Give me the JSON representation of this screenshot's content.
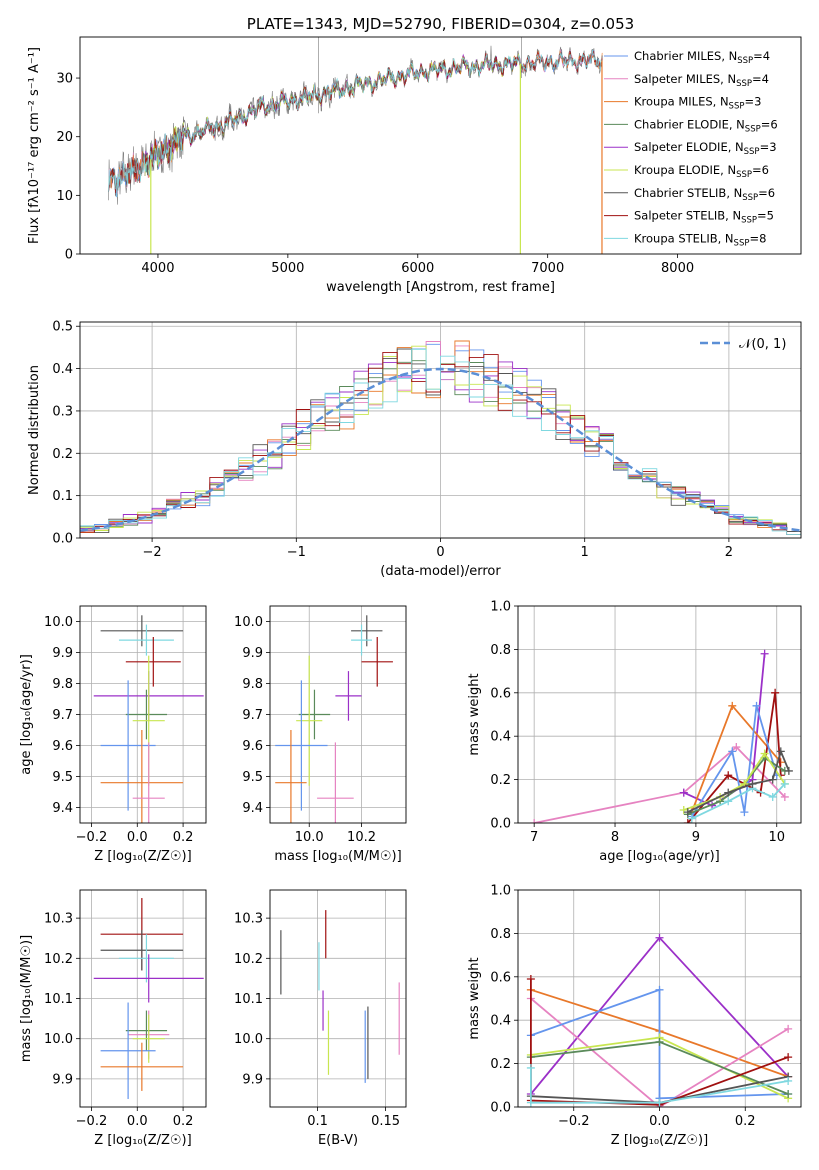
{
  "chart_data": [
    {
      "id": "spectrum",
      "type": "line",
      "title": "PLATE=1343, MJD=52790, FIBERID=0304, z=0.053",
      "xlabel": "wavelength [Angstrom, rest frame]",
      "ylabel": "Flux [fλ10⁻¹⁷ erg cm⁻² s⁻¹ A⁻¹]",
      "xlim": [
        3400,
        8950
      ],
      "ylim": [
        0,
        37
      ],
      "xticks": [
        4000,
        5000,
        6000,
        7000,
        8000
      ],
      "yticks": [
        0,
        10,
        20,
        30
      ],
      "legend_position": "top-right",
      "continuum": [
        [
          3600,
          12
        ],
        [
          3800,
          14
        ],
        [
          4000,
          17
        ],
        [
          4200,
          20
        ],
        [
          4500,
          22
        ],
        [
          4800,
          25
        ],
        [
          5000,
          26
        ],
        [
          5300,
          27.5
        ],
        [
          5600,
          29
        ],
        [
          6000,
          31
        ],
        [
          6400,
          32
        ],
        [
          6800,
          32.5
        ],
        [
          7200,
          33
        ],
        [
          7450,
          33
        ]
      ],
      "data_range": [
        3620,
        7420
      ],
      "models": [
        {
          "name": "Chabrier MILES, N_SSP=4",
          "label_main": "Chabrier MILES, N",
          "n": "4",
          "color": "#6495ed",
          "range": [
            3620,
            7420
          ]
        },
        {
          "name": "Salpeter MILES, N_SSP=4",
          "label_main": "Salpeter MILES, N",
          "n": "4",
          "color": "#e683c1",
          "range": [
            3620,
            7420
          ]
        },
        {
          "name": "Kroupa MILES, N_SSP=3",
          "label_main": "Kroupa MILES, N",
          "n": "3",
          "color": "#e8782a",
          "range": [
            3620,
            7420
          ]
        },
        {
          "name": "Chabrier ELODIE, N_SSP=6",
          "label_main": "Chabrier ELODIE, N",
          "n": "6",
          "color": "#5a8a5a",
          "range": [
            3900,
            6800
          ]
        },
        {
          "name": "Salpeter ELODIE, N_SSP=3",
          "label_main": "Salpeter ELODIE, N",
          "n": "3",
          "color": "#9b30c8",
          "range": [
            3900,
            6800
          ]
        },
        {
          "name": "Kroupa ELODIE, N_SSP=6",
          "label_main": "Kroupa ELODIE, N",
          "n": "6",
          "color": "#c8e650",
          "range": [
            3900,
            6800
          ]
        },
        {
          "name": "Chabrier STELIB, N_SSP=6",
          "label_main": "Chabrier STELIB, N",
          "n": "6",
          "color": "#555555",
          "range": [
            3620,
            7420
          ]
        },
        {
          "name": "Salpeter STELIB, N_SSP=5",
          "label_main": "Salpeter STELIB, N",
          "n": "5",
          "color": "#a01010",
          "range": [
            3620,
            7420
          ]
        },
        {
          "name": "Kroupa STELIB, N_SSP=8",
          "label_main": "Kroupa STELIB, N",
          "n": "8",
          "color": "#7fd8e0",
          "range": [
            3620,
            7420
          ]
        }
      ]
    },
    {
      "id": "residuals",
      "type": "histogram",
      "xlabel": "(data-model)/error",
      "ylabel": "Normed distribution",
      "xlim": [
        -2.5,
        2.5
      ],
      "ylim": [
        0,
        0.51
      ],
      "xticks": [
        -2,
        -1,
        0,
        1,
        2
      ],
      "yticks": [
        0.0,
        0.1,
        0.2,
        0.3,
        0.4,
        0.5
      ],
      "bin_width": 0.1,
      "grid": true,
      "legend_position": "top-right",
      "gaussian_label": "𝒩(0, 1)",
      "gaussian_color": "#5b8fd6"
    },
    {
      "id": "age_vs_Z",
      "type": "errorbar",
      "xlabel": "Z [log₁₀(Z/Z☉)]",
      "ylabel": "age  [log₁₀(age/yr)]",
      "xlim": [
        -0.25,
        0.3
      ],
      "ylim": [
        9.35,
        10.05
      ],
      "xticks": [
        -0.2,
        0.0,
        0.2
      ],
      "yticks": [
        9.4,
        9.5,
        9.6,
        9.7,
        9.8,
        9.9,
        10.0
      ],
      "grid": true,
      "points": [
        {
          "x": 0.02,
          "y": 9.97,
          "xe": 0.18,
          "ye": 0.05,
          "color": "#555555"
        },
        {
          "x": 0.04,
          "y": 9.94,
          "xe": 0.12,
          "ye": 0.05,
          "color": "#7fd8e0"
        },
        {
          "x": 0.07,
          "y": 9.87,
          "xe": 0.12,
          "ye": 0.08,
          "color": "#a01010"
        },
        {
          "x": 0.05,
          "y": 9.76,
          "xe": 0.24,
          "ye": 0.08,
          "color": "#9b30c8"
        },
        {
          "x": 0.04,
          "y": 9.7,
          "xe": 0.09,
          "ye": 0.08,
          "color": "#5a8a5a"
        },
        {
          "x": 0.05,
          "y": 9.68,
          "xe": 0.07,
          "ye": 0.21,
          "color": "#c8e650"
        },
        {
          "x": -0.04,
          "y": 9.6,
          "xe": 0.12,
          "ye": 0.21,
          "color": "#6495ed"
        },
        {
          "x": 0.02,
          "y": 9.48,
          "xe": 0.18,
          "ye": 0.17,
          "color": "#e8782a"
        },
        {
          "x": 0.05,
          "y": 9.43,
          "xe": 0.07,
          "ye": 0.18,
          "color": "#e683c1"
        }
      ]
    },
    {
      "id": "age_vs_mass",
      "type": "errorbar",
      "xlabel": "mass [log₁₀(M/M☉)]",
      "ylabel": "",
      "xlim": [
        9.85,
        10.37
      ],
      "ylim": [
        9.35,
        10.05
      ],
      "xticks": [
        10.0,
        10.2
      ],
      "yticks": [
        9.4,
        9.5,
        9.6,
        9.7,
        9.8,
        9.9,
        10.0
      ],
      "grid": true,
      "points": [
        {
          "x": 10.22,
          "y": 9.97,
          "xe": 0.06,
          "ye": 0.05,
          "color": "#555555"
        },
        {
          "x": 10.2,
          "y": 9.94,
          "xe": 0.04,
          "ye": 0.05,
          "color": "#7fd8e0"
        },
        {
          "x": 10.26,
          "y": 9.87,
          "xe": 0.06,
          "ye": 0.08,
          "color": "#a01010"
        },
        {
          "x": 10.15,
          "y": 9.76,
          "xe": 0.05,
          "ye": 0.08,
          "color": "#9b30c8"
        },
        {
          "x": 10.02,
          "y": 9.7,
          "xe": 0.06,
          "ye": 0.08,
          "color": "#5a8a5a"
        },
        {
          "x": 10.0,
          "y": 9.68,
          "xe": 0.05,
          "ye": 0.21,
          "color": "#c8e650"
        },
        {
          "x": 9.97,
          "y": 9.6,
          "xe": 0.1,
          "ye": 0.21,
          "color": "#6495ed"
        },
        {
          "x": 9.93,
          "y": 9.48,
          "xe": 0.06,
          "ye": 0.17,
          "color": "#e8782a"
        },
        {
          "x": 10.1,
          "y": 9.43,
          "xe": 0.07,
          "ye": 0.18,
          "color": "#e683c1"
        }
      ]
    },
    {
      "id": "weight_vs_age",
      "type": "line",
      "xlabel": "age  [log₁₀(age/yr)]",
      "ylabel": "mass weight",
      "xlim": [
        6.8,
        10.3
      ],
      "ylim": [
        0,
        1
      ],
      "xticks": [
        7,
        8,
        9,
        10
      ],
      "yticks": [
        0.0,
        0.2,
        0.4,
        0.6,
        0.8,
        1.0
      ],
      "grid": true,
      "series": [
        {
          "color": "#e683c1",
          "points": [
            [
              7.0,
              0.0
            ],
            [
              8.85,
              0.14
            ],
            [
              9.5,
              0.35
            ],
            [
              10.1,
              0.12
            ]
          ]
        },
        {
          "color": "#9b30c8",
          "points": [
            [
              8.85,
              0.14
            ],
            [
              9.2,
              0.08
            ],
            [
              9.7,
              0.2
            ],
            [
              9.85,
              0.78
            ]
          ]
        },
        {
          "color": "#e8782a",
          "points": [
            [
              8.95,
              0.05
            ],
            [
              9.45,
              0.54
            ],
            [
              10.05,
              0.28
            ]
          ]
        },
        {
          "color": "#a01010",
          "points": [
            [
              8.9,
              0.0
            ],
            [
              9.4,
              0.22
            ],
            [
              9.8,
              0.14
            ],
            [
              9.98,
              0.6
            ],
            [
              10.05,
              0.22
            ]
          ]
        },
        {
          "color": "#6495ed",
          "points": [
            [
              8.95,
              0.03
            ],
            [
              9.45,
              0.33
            ],
            [
              9.6,
              0.05
            ],
            [
              9.75,
              0.54
            ],
            [
              10.0,
              0.22
            ]
          ]
        },
        {
          "color": "#5a8a5a",
          "points": [
            [
              8.9,
              0.04
            ],
            [
              9.3,
              0.1
            ],
            [
              9.6,
              0.18
            ],
            [
              9.85,
              0.3
            ],
            [
              10.1,
              0.24
            ]
          ]
        },
        {
          "color": "#c8e650",
          "points": [
            [
              8.85,
              0.06
            ],
            [
              9.3,
              0.12
            ],
            [
              9.6,
              0.18
            ],
            [
              9.85,
              0.32
            ],
            [
              10.1,
              0.18
            ]
          ]
        },
        {
          "color": "#7fd8e0",
          "points": [
            [
              8.95,
              0.02
            ],
            [
              9.4,
              0.1
            ],
            [
              9.7,
              0.16
            ],
            [
              9.95,
              0.12
            ],
            [
              10.1,
              0.18
            ]
          ]
        },
        {
          "color": "#555555",
          "points": [
            [
              8.9,
              0.05
            ],
            [
              9.4,
              0.14
            ],
            [
              9.7,
              0.18
            ],
            [
              9.95,
              0.2
            ],
            [
              10.05,
              0.33
            ],
            [
              10.15,
              0.24
            ]
          ]
        }
      ]
    },
    {
      "id": "mass_vs_Z",
      "type": "errorbar",
      "xlabel": "Z [log₁₀(Z/Z☉)]",
      "ylabel": "mass [log₁₀(M/M☉)]",
      "xlim": [
        -0.25,
        0.3
      ],
      "ylim": [
        9.83,
        10.37
      ],
      "xticks": [
        -0.2,
        0.0,
        0.2
      ],
      "yticks": [
        9.9,
        10.0,
        10.1,
        10.2,
        10.3
      ],
      "grid": true,
      "points": [
        {
          "x": 0.02,
          "y": 10.26,
          "xe": 0.18,
          "ye": 0.09,
          "color": "#a01010"
        },
        {
          "x": 0.02,
          "y": 10.22,
          "xe": 0.18,
          "ye": 0.05,
          "color": "#555555"
        },
        {
          "x": 0.04,
          "y": 10.2,
          "xe": 0.12,
          "ye": 0.06,
          "color": "#7fd8e0"
        },
        {
          "x": 0.05,
          "y": 10.15,
          "xe": 0.24,
          "ye": 0.06,
          "color": "#9b30c8"
        },
        {
          "x": 0.05,
          "y": 10.01,
          "xe": 0.09,
          "ye": 0.06,
          "color": "#e683c1"
        },
        {
          "x": 0.04,
          "y": 10.02,
          "xe": 0.09,
          "ye": 0.05,
          "color": "#5a8a5a"
        },
        {
          "x": 0.05,
          "y": 10.0,
          "xe": 0.07,
          "ye": 0.06,
          "color": "#c8e650"
        },
        {
          "x": -0.04,
          "y": 9.97,
          "xe": 0.12,
          "ye": 0.12,
          "color": "#6495ed"
        },
        {
          "x": 0.02,
          "y": 9.93,
          "xe": 0.18,
          "ye": 0.06,
          "color": "#e8782a"
        }
      ]
    },
    {
      "id": "mass_vs_EBV",
      "type": "errorbar",
      "xlabel": "E(B-V)",
      "ylabel": "",
      "xlim": [
        0.065,
        0.165
      ],
      "ylim": [
        9.83,
        10.37
      ],
      "xticks": [
        0.1,
        0.15
      ],
      "yticks": [
        9.9,
        10.0,
        10.1,
        10.2,
        10.3
      ],
      "grid": true,
      "points": [
        {
          "x": 0.073,
          "y": 10.19,
          "xe": 0,
          "ye": 0.08,
          "color": "#555555"
        },
        {
          "x": 0.101,
          "y": 10.18,
          "xe": 0,
          "ye": 0.06,
          "color": "#7fd8e0"
        },
        {
          "x": 0.106,
          "y": 10.26,
          "xe": 0,
          "ye": 0.06,
          "color": "#a01010"
        },
        {
          "x": 0.104,
          "y": 10.07,
          "xe": 0,
          "ye": 0.05,
          "color": "#9b30c8"
        },
        {
          "x": 0.108,
          "y": 9.99,
          "xe": 0,
          "ye": 0.08,
          "color": "#c8e650"
        },
        {
          "x": 0.135,
          "y": 9.98,
          "xe": 0,
          "ye": 0.09,
          "color": "#6495ed"
        },
        {
          "x": 0.137,
          "y": 9.99,
          "xe": 0,
          "ye": 0.09,
          "color": "#555555"
        },
        {
          "x": 0.16,
          "y": 10.05,
          "xe": 0,
          "ye": 0.09,
          "color": "#e683c1"
        }
      ]
    },
    {
      "id": "weight_vs_Z",
      "type": "line",
      "xlabel": "Z [log₁₀(Z/Z☉)]",
      "ylabel": "mass weight",
      "xlim": [
        -0.33,
        0.33
      ],
      "ylim": [
        0,
        1
      ],
      "xticks": [
        -0.2,
        0.0,
        0.2
      ],
      "yticks": [
        0.0,
        0.2,
        0.4,
        0.6,
        0.8,
        1.0
      ],
      "grid": true,
      "series": [
        {
          "color": "#9b30c8",
          "points": [
            [
              -0.3,
              0.06
            ],
            [
              0.0,
              0.78
            ],
            [
              0.3,
              0.14
            ]
          ]
        },
        {
          "color": "#e8782a",
          "points": [
            [
              -0.3,
              0.54
            ],
            [
              0.0,
              0.35
            ],
            [
              0.3,
              0.14
            ]
          ]
        },
        {
          "color": "#e683c1",
          "points": [
            [
              -0.3,
              0.5
            ],
            [
              0.0,
              0.0
            ],
            [
              0.3,
              0.36
            ]
          ]
        },
        {
          "color": "#6495ed",
          "points": [
            [
              -0.3,
              0.33
            ],
            [
              0.0,
              0.54
            ],
            [
              0.0,
              0.04
            ],
            [
              0.3,
              0.06
            ]
          ]
        },
        {
          "color": "#c8e650",
          "points": [
            [
              -0.3,
              0.24
            ],
            [
              0.0,
              0.32
            ],
            [
              0.3,
              0.04
            ]
          ]
        },
        {
          "color": "#5a8a5a",
          "points": [
            [
              -0.3,
              0.23
            ],
            [
              0.0,
              0.3
            ],
            [
              0.3,
              0.06
            ]
          ]
        },
        {
          "color": "#a01010",
          "points": [
            [
              -0.3,
              0.59
            ],
            [
              -0.3,
              0.03
            ],
            [
              0.0,
              0.01
            ],
            [
              0.3,
              0.23
            ]
          ]
        },
        {
          "color": "#555555",
          "points": [
            [
              -0.3,
              0.05
            ],
            [
              0.0,
              0.02
            ],
            [
              0.3,
              0.14
            ]
          ]
        },
        {
          "color": "#7fd8e0",
          "points": [
            [
              -0.3,
              0.18
            ],
            [
              -0.3,
              0.02
            ],
            [
              0.0,
              0.02
            ],
            [
              0.3,
              0.12
            ]
          ]
        }
      ]
    }
  ]
}
